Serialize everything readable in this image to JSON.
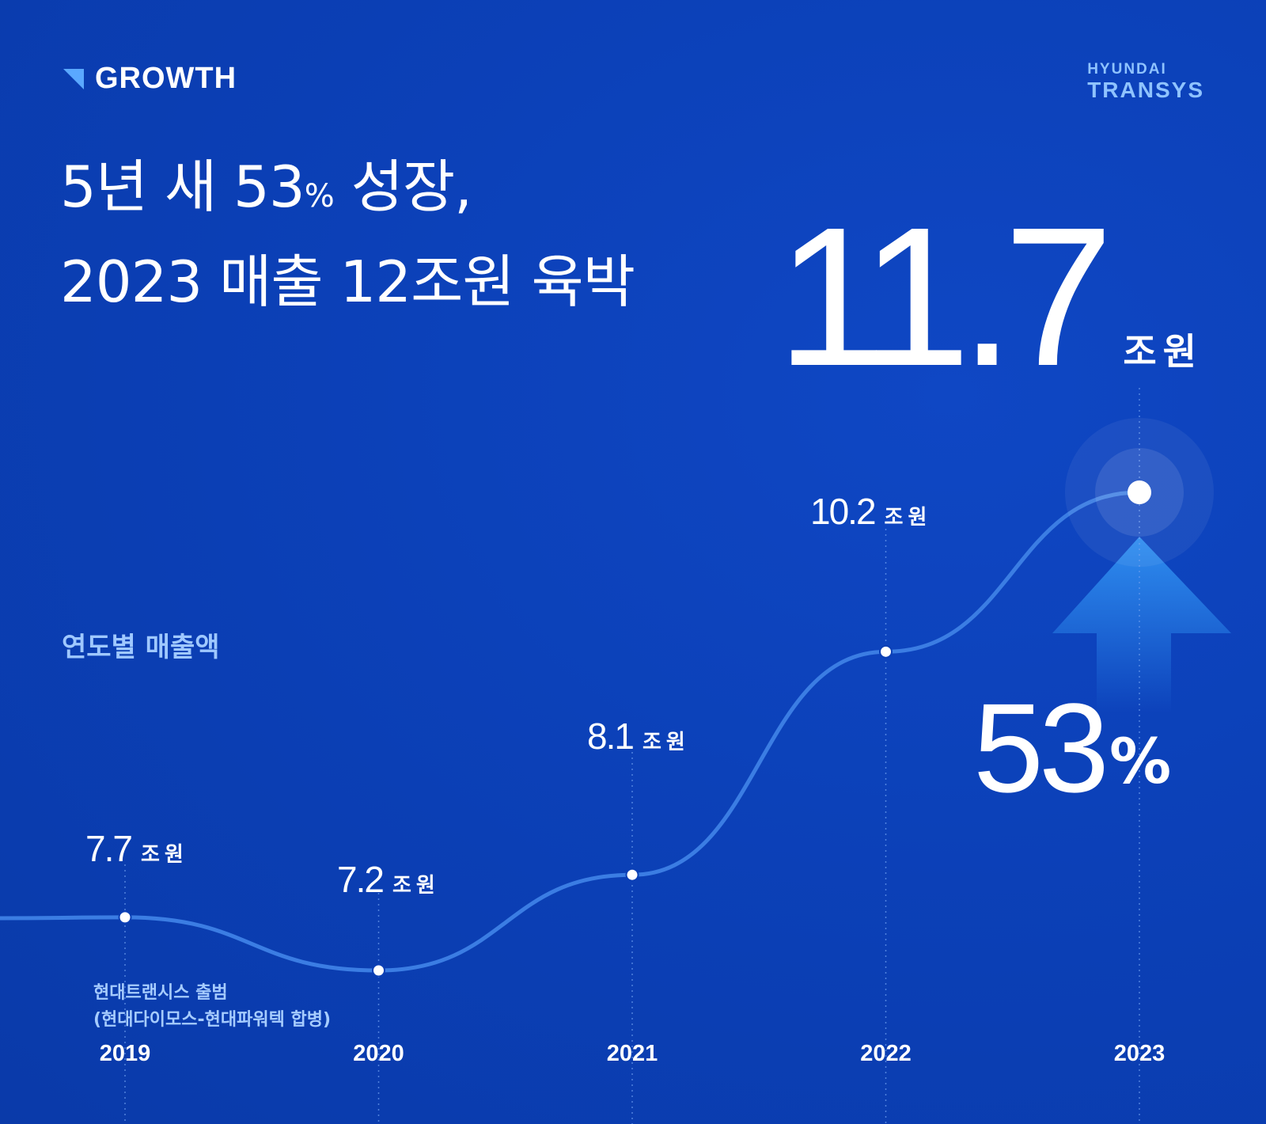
{
  "header": {
    "tag": "GROWTH",
    "logo_top": "HYUNDAI",
    "logo_bottom": "TRANSYS"
  },
  "headline": {
    "line1_pre": "5년 새 53",
    "line1_pct": "%",
    "line1_post": " 성장,",
    "line2": "2023 매출 12조원 육박"
  },
  "highlight": {
    "value": "11.7",
    "unit": "조원"
  },
  "section_label": "연도별 매출액",
  "growth": {
    "value": "53",
    "unit": "%"
  },
  "footnote": {
    "line1": "현대트랜시스 출범",
    "line2": "(현대다이모스-현대파워텍 합병)"
  },
  "colors": {
    "background": "#0b3fb5",
    "accent": "#2f8ef0",
    "line": "#3b7de3",
    "muted_text": "#9fc8ff"
  },
  "chart_data": {
    "type": "line",
    "title": "연도별 매출액",
    "x": [
      "2019",
      "2020",
      "2021",
      "2022",
      "2023"
    ],
    "series": [
      {
        "values": [
          7.7,
          7.2,
          8.1,
          10.2,
          11.7
        ]
      }
    ],
    "data_labels": [
      "7.7",
      "7.2",
      "8.1",
      "10.2",
      ""
    ],
    "value_unit": "조원",
    "grid": false
  }
}
